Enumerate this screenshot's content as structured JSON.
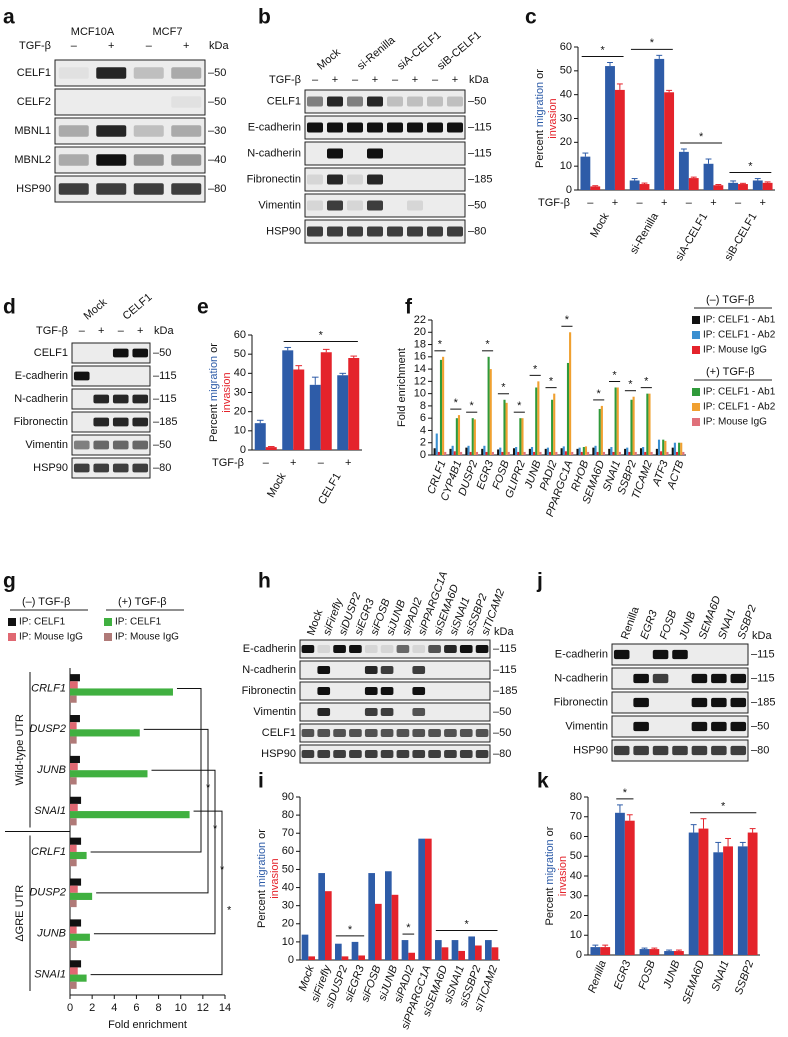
{
  "blots": [
    {
      "letter": "a",
      "groups": [
        "MCF10A",
        "MCF7"
      ],
      "treatment": "TGF-β",
      "lanes": [
        "–",
        "+",
        "–",
        "+"
      ],
      "kda": "kDa",
      "rows": [
        {
          "label": "CELF1",
          "marker": "–50"
        },
        {
          "label": "CELF2",
          "marker": "–50"
        },
        {
          "label": "MBNL1",
          "marker": "–30"
        },
        {
          "label": "MBNL2",
          "marker": "–40"
        },
        {
          "label": "HSP90",
          "marker": "–80"
        }
      ]
    },
    {
      "letter": "b",
      "groups": [
        "Mock",
        "si-Renilla",
        "siA-CELF1",
        "siB-CELF1"
      ],
      "treatment": "TGF-β",
      "lanes": [
        "–",
        "+",
        "–",
        "+",
        "–",
        "+",
        "–",
        "+"
      ],
      "kda": "kDa",
      "rows": [
        {
          "label": "CELF1",
          "marker": "–50"
        },
        {
          "label": "E-cadherin",
          "marker": "–115"
        },
        {
          "label": "N-cadherin",
          "marker": "–115"
        },
        {
          "label": "Fibronectin",
          "marker": "–185"
        },
        {
          "label": "Vimentin",
          "marker": "–50"
        },
        {
          "label": "HSP90",
          "marker": "–80"
        }
      ]
    },
    {
      "letter": "d",
      "groups": [
        "Mock",
        "CELF1"
      ],
      "treatment": "TGF-β",
      "lanes": [
        "–",
        "+",
        "–",
        "+"
      ],
      "kda": "kDa",
      "rows": [
        {
          "label": "CELF1",
          "marker": "–50"
        },
        {
          "label": "E-cadherin",
          "marker": "–115"
        },
        {
          "label": "N-cadherin",
          "marker": "–115"
        },
        {
          "label": "Fibronectin",
          "marker": "–185"
        },
        {
          "label": "Vimentin",
          "marker": "–50"
        },
        {
          "label": "HSP90",
          "marker": "–80"
        }
      ]
    },
    {
      "letter": "h",
      "lanes": [
        "Mock",
        "siFirefly",
        "siDUSP2",
        "siEGR3",
        "siFOSB",
        "siJUNB",
        "siPADI2",
        "siPPARGC1A",
        "siSEMA6D",
        "siSNAI1",
        "siSSBP2",
        "siTICAM2"
      ],
      "kda": "kDa",
      "rows": [
        {
          "label": "E-cadherin",
          "marker": "–115"
        },
        {
          "label": "N-cadherin",
          "marker": "–115"
        },
        {
          "label": "Fibronectin",
          "marker": "–185"
        },
        {
          "label": "Vimentin",
          "marker": "–50"
        },
        {
          "label": "CELF1",
          "marker": "–50"
        },
        {
          "label": "HSP90",
          "marker": "–80"
        }
      ]
    },
    {
      "letter": "j",
      "lanes": [
        "Renilla",
        "EGR3",
        "FOSB",
        "JUNB",
        "SEMA6D",
        "SNAI1",
        "SSBP2"
      ],
      "kda": "kDa",
      "rows": [
        {
          "label": "E-cadherin",
          "marker": "–115"
        },
        {
          "label": "N-cadherin",
          "marker": "–115"
        },
        {
          "label": "Fibronectin",
          "marker": "–185"
        },
        {
          "label": "Vimentin",
          "marker": "–50"
        },
        {
          "label": "HSP90",
          "marker": "–80"
        }
      ]
    }
  ],
  "chart_data": [
    {
      "type": "bar",
      "letter": "c",
      "ylabel_prefix": "Percent",
      "ylabel_joiner": "or",
      "x_row_label": "TGF-β",
      "categories": [
        "–",
        "+",
        "–",
        "+",
        "–",
        "+",
        "–",
        "+"
      ],
      "groups": [
        "Mock",
        "si-Renilla",
        "siA-CELF1",
        "siB-CELF1"
      ],
      "series": [
        {
          "name": "migration",
          "color": "#2e5ca8",
          "values": [
            14,
            52,
            4,
            55,
            16,
            11,
            3,
            4
          ],
          "errors": [
            1.5,
            1.5,
            0.8,
            1.5,
            1.2,
            2,
            0.8,
            0.8
          ]
        },
        {
          "name": "invasion",
          "color": "#e4232b",
          "values": [
            1.5,
            42,
            2.5,
            41,
            5,
            2,
            2.5,
            3
          ],
          "errors": [
            0.3,
            2.5,
            0.4,
            0.8,
            0.4,
            0.3,
            0.3,
            0.4
          ]
        }
      ],
      "ylim": [
        0,
        60
      ],
      "yticks": [
        0,
        10,
        20,
        30,
        40,
        50,
        60
      ],
      "annotations": [
        {
          "text": "*",
          "span": [
            0,
            1
          ]
        },
        {
          "text": "*",
          "span": [
            2,
            3
          ]
        },
        {
          "text": "*",
          "span": [
            4,
            5
          ]
        },
        {
          "text": "*",
          "span": [
            6,
            7
          ]
        }
      ]
    },
    {
      "type": "bar",
      "letter": "e",
      "ylabel_prefix": "Percent",
      "ylabel_joiner": "or",
      "x_row_label": "TGF-β",
      "categories": [
        "–",
        "+",
        "–",
        "+"
      ],
      "groups": [
        "Mock",
        "CELF1"
      ],
      "series": [
        {
          "name": "migration",
          "color": "#2e5ca8",
          "values": [
            14,
            52,
            34,
            39
          ],
          "errors": [
            1.5,
            1.5,
            4,
            1
          ]
        },
        {
          "name": "invasion",
          "color": "#e4232b",
          "values": [
            1.5,
            42,
            51,
            48
          ],
          "errors": [
            0.3,
            2,
            1.5,
            1
          ]
        }
      ],
      "ylim": [
        0,
        60
      ],
      "yticks": [
        0,
        10,
        20,
        30,
        40,
        50,
        60
      ],
      "annotations": [
        {
          "text": "*",
          "span": [
            1,
            3
          ]
        }
      ]
    },
    {
      "type": "bar",
      "letter": "f",
      "ylabel": "Fold enrichment",
      "categories": [
        "CRLF1",
        "CYP4B1",
        "DUSP2",
        "EGR3",
        "FOSB",
        "GLIPR2",
        "JUNB",
        "PADI2",
        "PPARGC1A",
        "RHOB",
        "SEMA6D",
        "SNAI1",
        "SSBP2",
        "TICAM2",
        "ATF3",
        "ACTB"
      ],
      "series": [
        {
          "name": "IP: CELF1 - Ab1",
          "color": "#111111",
          "values": [
            1.1,
            1,
            1.2,
            1,
            0.9,
            1.1,
            1,
            1,
            1.1,
            1,
            1.2,
            1,
            1,
            1.1,
            1,
            1.2
          ]
        },
        {
          "name": "IP: CELF1 - Ab2",
          "color": "#3a8fd0",
          "values": [
            3.5,
            1.5,
            1.5,
            1.5,
            1.2,
            1.3,
            1.3,
            1.2,
            1.4,
            1.2,
            1.5,
            1.3,
            1.2,
            1.3,
            2.5,
            2
          ]
        },
        {
          "name": "IP: Mouse IgG",
          "color": "#e4232b",
          "values": [
            0.5,
            0.6,
            0.5,
            0.5,
            0.5,
            0.5,
            0.5,
            0.5,
            0.6,
            0.5,
            0.5,
            0.5,
            0.5,
            0.5,
            0.6,
            0.5
          ]
        },
        {
          "name": "IP: CELF1 - Ab1",
          "color": "#2f9a3a",
          "values": [
            15.5,
            6,
            6,
            16,
            9,
            6,
            11,
            9,
            15,
            1.3,
            7.5,
            11,
            9,
            10,
            2.5,
            2
          ]
        },
        {
          "name": "IP: CELF1 - Ab2",
          "color": "#f0a030",
          "values": [
            16,
            6.5,
            5.8,
            14,
            8.5,
            6,
            12,
            10,
            20,
            1.4,
            8,
            11,
            9.5,
            10,
            2.3,
            2
          ]
        },
        {
          "name": "IP: Mouse IgG",
          "color": "#e0707a",
          "values": [
            0.5,
            0.5,
            0.5,
            0.5,
            0.5,
            0.5,
            0.5,
            0.5,
            0.5,
            0.5,
            0.5,
            0.5,
            0.5,
            0.5,
            0.5,
            0.5
          ]
        }
      ],
      "legend_groups": [
        {
          "title": "(–) TGF-β",
          "series": [
            0,
            1,
            2
          ]
        },
        {
          "title": "(+) TGF-β",
          "series": [
            3,
            4,
            5
          ]
        }
      ],
      "ylim": [
        0,
        22
      ],
      "yticks": [
        0,
        2,
        4,
        6,
        8,
        10,
        12,
        14,
        16,
        18,
        20,
        22
      ],
      "annotations": [
        {
          "text": "*",
          "span": [
            0,
            0
          ]
        },
        {
          "text": "*",
          "span": [
            1,
            1
          ]
        },
        {
          "text": "*",
          "span": [
            2,
            2
          ]
        },
        {
          "text": "*",
          "span": [
            3,
            3
          ]
        },
        {
          "text": "*",
          "span": [
            4,
            4
          ]
        },
        {
          "text": "*",
          "span": [
            5,
            5
          ]
        },
        {
          "text": "*",
          "span": [
            6,
            6
          ]
        },
        {
          "text": "*",
          "span": [
            7,
            7
          ]
        },
        {
          "text": "*",
          "span": [
            8,
            8
          ]
        },
        {
          "text": "*",
          "span": [
            10,
            10
          ]
        },
        {
          "text": "*",
          "span": [
            11,
            11
          ]
        },
        {
          "text": "*",
          "span": [
            12,
            12
          ]
        },
        {
          "text": "*",
          "span": [
            13,
            13
          ]
        }
      ]
    },
    {
      "type": "hbar",
      "letter": "g",
      "xlabel": "Fold enrichment",
      "categories": [
        "CRLF1",
        "DUSP2",
        "JUNB",
        "SNAI1",
        "CRLF1",
        "DUSP2",
        "JUNB",
        "SNAI1"
      ],
      "groups": [
        "Wild-type UTR",
        "ΔGRE UTR"
      ],
      "series": [
        {
          "name": "IP: CELF1",
          "color": "#111111",
          "values": [
            0.9,
            0.9,
            0.9,
            1,
            1,
            1,
            1,
            1
          ]
        },
        {
          "name": "IP: Mouse IgG",
          "color": "#e06872",
          "values": [
            0.7,
            0.6,
            0.7,
            0.7,
            0.6,
            0.7,
            0.6,
            0.7
          ]
        },
        {
          "name": "IP: CELF1",
          "color": "#40b040",
          "values": [
            9.3,
            6.3,
            7,
            10.8,
            1.5,
            2,
            1.8,
            1.5
          ]
        },
        {
          "name": "IP: Mouse IgG",
          "color": "#b07a78",
          "values": [
            0.6,
            0.6,
            0.6,
            0.6,
            0.6,
            0.6,
            0.6,
            0.6
          ]
        }
      ],
      "legend_groups": [
        {
          "title": "(–) TGF-β",
          "series": [
            0,
            1
          ]
        },
        {
          "title": "(+) TGF-β",
          "series": [
            2,
            3
          ]
        }
      ],
      "xlim": [
        0,
        14
      ],
      "xticks": [
        0,
        2,
        4,
        6,
        8,
        10,
        12,
        14
      ],
      "annotations": [
        {
          "text": "*",
          "span": [
            0,
            4
          ]
        },
        {
          "text": "*",
          "span": [
            1,
            5
          ]
        },
        {
          "text": "*",
          "span": [
            2,
            6
          ]
        },
        {
          "text": "*",
          "span": [
            3,
            7
          ]
        }
      ]
    },
    {
      "type": "bar",
      "letter": "i",
      "ylabel_prefix": "Percent",
      "ylabel_joiner": "or",
      "categories": [
        "Mock",
        "siFirefly",
        "siDUSP2",
        "siEGR3",
        "siFOSB",
        "siJUNB",
        "siPADI2",
        "siPPARGC1A",
        "siSEMA6D",
        "siSNAI1",
        "siSSBP2",
        "siTICAM2"
      ],
      "series": [
        {
          "name": "migration",
          "color": "#2e5ca8",
          "values": [
            14,
            48,
            9,
            10,
            48,
            49,
            11,
            67,
            11,
            11,
            13,
            11
          ]
        },
        {
          "name": "invasion",
          "color": "#e4232b",
          "values": [
            2,
            38,
            2,
            2.5,
            31,
            36,
            4,
            67,
            7,
            5,
            8,
            7
          ]
        }
      ],
      "ylim": [
        0,
        90
      ],
      "yticks": [
        0,
        10,
        20,
        30,
        40,
        50,
        60,
        70,
        80,
        90
      ],
      "annotations": [
        {
          "text": "*",
          "span": [
            2,
            3
          ]
        },
        {
          "text": "*",
          "span": [
            6,
            6
          ]
        },
        {
          "text": "*",
          "span": [
            8,
            11
          ]
        }
      ]
    },
    {
      "type": "bar",
      "letter": "k",
      "ylabel_prefix": "Percent",
      "ylabel_joiner": "or",
      "categories": [
        "Renilla",
        "EGR3",
        "FOSB",
        "JUNB",
        "SEMA6D",
        "SNAI1",
        "SSBP2"
      ],
      "series": [
        {
          "name": "migration",
          "color": "#2e5ca8",
          "values": [
            4,
            72,
            3,
            2,
            62,
            52,
            55
          ],
          "errors": [
            1,
            4,
            0.5,
            0.5,
            4,
            5,
            2
          ]
        },
        {
          "name": "invasion",
          "color": "#e4232b",
          "values": [
            4,
            68,
            3,
            2,
            64,
            55,
            62
          ],
          "errors": [
            1,
            3,
            0.5,
            0.5,
            5,
            4,
            2
          ]
        }
      ],
      "ylim": [
        0,
        80
      ],
      "yticks": [
        0,
        10,
        20,
        30,
        40,
        50,
        60,
        70,
        80
      ],
      "annotations": [
        {
          "text": "*",
          "span": [
            1,
            1
          ]
        },
        {
          "text": "*",
          "span": [
            4,
            6
          ]
        }
      ]
    }
  ]
}
